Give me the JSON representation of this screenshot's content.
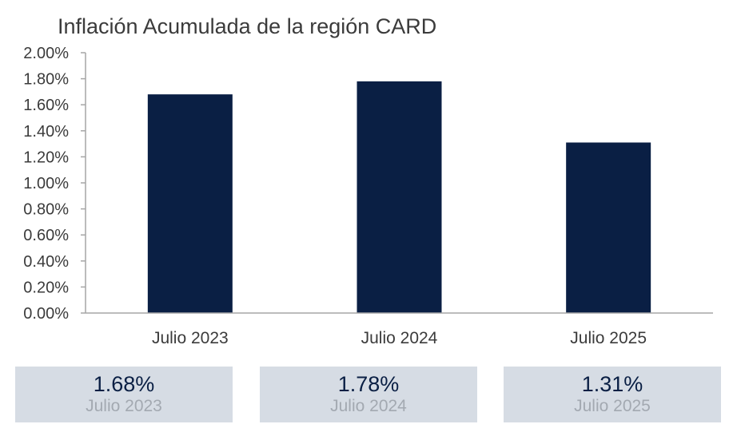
{
  "chart_data": {
    "type": "bar",
    "title": "Inflación Acumulada de la región CARD",
    "categories": [
      "Julio 2023",
      "Julio 2024",
      "Julio 2025"
    ],
    "values": [
      1.68,
      1.78,
      1.31
    ],
    "unit": "%",
    "ylim": [
      0,
      2.0
    ],
    "y_ticks": [
      "0.00%",
      "0.20%",
      "0.40%",
      "0.60%",
      "0.80%",
      "1.00%",
      "1.20%",
      "1.40%",
      "1.60%",
      "1.80%",
      "2.00%"
    ],
    "bar_color": "#0a1f44",
    "grid": false,
    "legend": "none"
  },
  "summary": [
    {
      "value": "1.68%",
      "label": "Julio 2023"
    },
    {
      "value": "1.78%",
      "label": "Julio 2024"
    },
    {
      "value": "1.31%",
      "label": "Julio 2025"
    }
  ],
  "colors": {
    "bar": "#0a1f44",
    "card_background": "#d6dce4",
    "card_value": "#0a1f44",
    "card_label": "#a3a9b1",
    "axis": "#a6a6a6"
  }
}
